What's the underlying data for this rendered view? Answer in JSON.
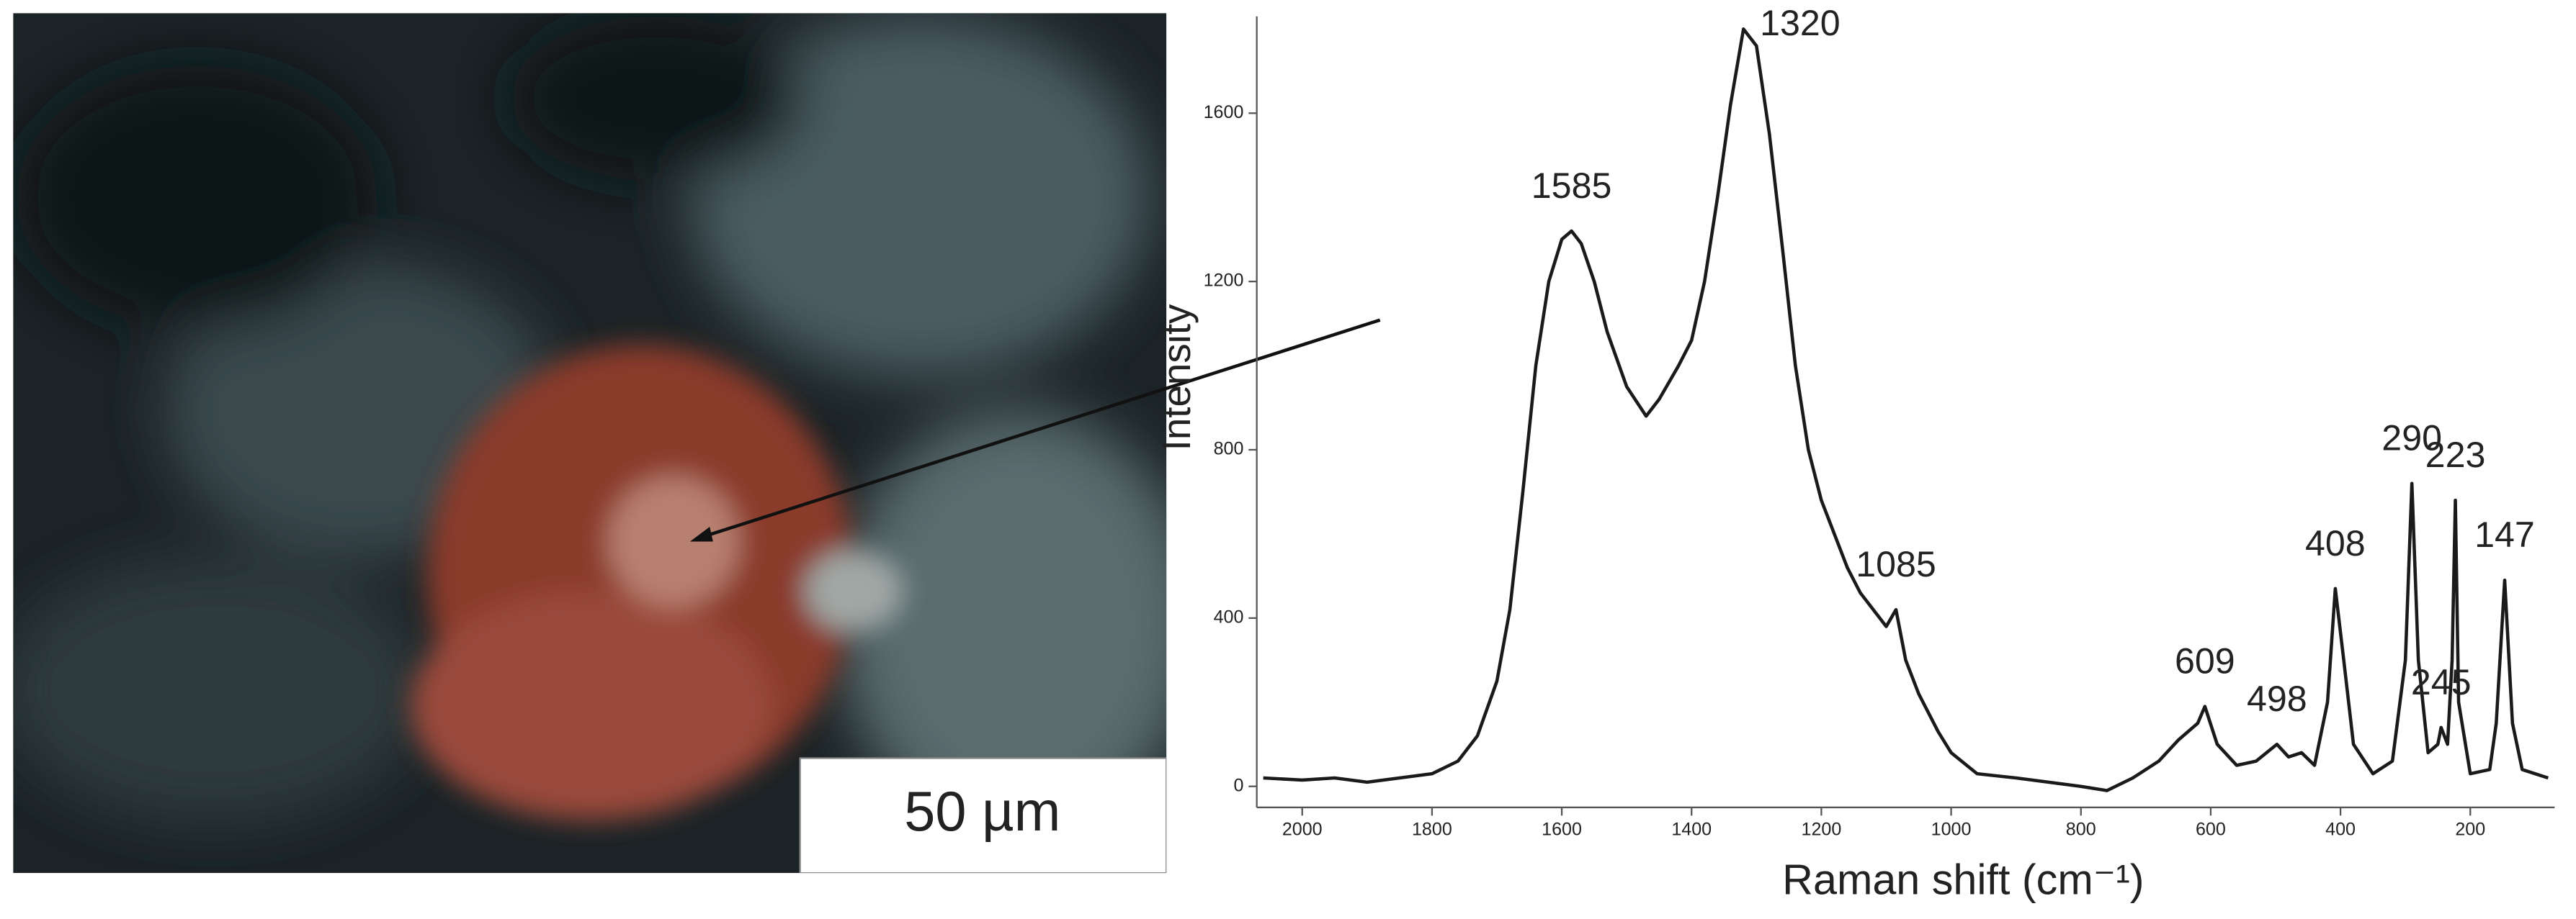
{
  "chart_data": {
    "type": "line",
    "x_label": "Raman shift (cm⁻¹)",
    "y_label": "Intensity",
    "scale_bar": "50 µm",
    "x": [
      2060,
      2000,
      1950,
      1900,
      1850,
      1800,
      1760,
      1730,
      1700,
      1680,
      1660,
      1640,
      1620,
      1600,
      1585,
      1570,
      1550,
      1530,
      1500,
      1470,
      1450,
      1420,
      1400,
      1380,
      1360,
      1340,
      1320,
      1300,
      1280,
      1260,
      1240,
      1220,
      1200,
      1180,
      1160,
      1140,
      1120,
      1100,
      1085,
      1070,
      1050,
      1020,
      1000,
      960,
      900,
      850,
      800,
      760,
      720,
      680,
      650,
      620,
      609,
      590,
      560,
      530,
      498,
      480,
      460,
      440,
      420,
      408,
      395,
      380,
      350,
      320,
      300,
      290,
      280,
      265,
      250,
      245,
      235,
      228,
      223,
      218,
      200,
      170,
      160,
      147,
      135,
      120,
      100,
      80
    ],
    "series": [
      {
        "color": "#1a1a1a",
        "values": [
          20,
          15,
          20,
          10,
          20,
          30,
          60,
          120,
          250,
          420,
          700,
          1000,
          1200,
          1300,
          1320,
          1290,
          1200,
          1080,
          950,
          880,
          920,
          1000,
          1060,
          1200,
          1400,
          1620,
          1800,
          1760,
          1550,
          1280,
          1000,
          800,
          680,
          600,
          520,
          460,
          420,
          380,
          420,
          300,
          220,
          130,
          80,
          30,
          20,
          10,
          0,
          -10,
          20,
          60,
          110,
          150,
          190,
          100,
          50,
          60,
          100,
          70,
          80,
          50,
          200,
          470,
          300,
          100,
          30,
          60,
          300,
          720,
          300,
          80,
          100,
          140,
          100,
          300,
          680,
          200,
          30,
          40,
          150,
          490,
          150,
          40,
          30,
          20
        ]
      }
    ],
    "xlim": [
      2070,
      70
    ],
    "ylim": [
      -50,
      1830
    ],
    "xticks": [
      2000,
      1800,
      1600,
      1400,
      1200,
      1000,
      800,
      600,
      400,
      200
    ],
    "yticks": [
      0,
      400,
      800,
      1200,
      1600
    ],
    "annotations": [
      {
        "text": "1585",
        "x": 1585,
        "y": 1320
      },
      {
        "text": "1320",
        "x": 1320,
        "y": 1800
      },
      {
        "text": "1085",
        "x": 1085,
        "y": 420
      },
      {
        "text": "609",
        "x": 609,
        "y": 190
      },
      {
        "text": "498",
        "x": 498,
        "y": 100
      },
      {
        "text": "408",
        "x": 408,
        "y": 470
      },
      {
        "text": "290",
        "x": 290,
        "y": 720
      },
      {
        "text": "245",
        "x": 245,
        "y": 140
      },
      {
        "text": "223",
        "x": 223,
        "y": 680
      },
      {
        "text": "147",
        "x": 147,
        "y": 490
      }
    ]
  }
}
